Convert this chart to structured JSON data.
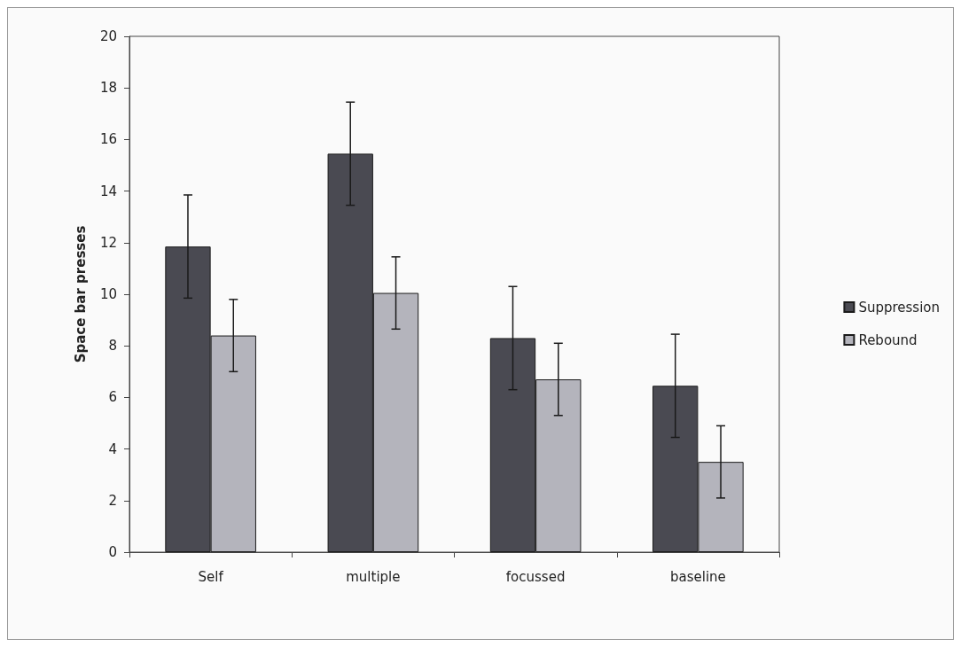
{
  "chart_data": {
    "type": "bar",
    "ylabel": "Space bar presses",
    "categories": [
      "Self",
      "multiple",
      "focussed",
      "baseline"
    ],
    "series": [
      {
        "name": "Suppression",
        "color": "#4a4a52",
        "values": [
          11.85,
          15.45,
          8.3,
          6.45
        ],
        "errors": [
          2,
          2,
          2,
          2
        ]
      },
      {
        "name": "Rebound",
        "color": "#b4b4bc",
        "values": [
          8.4,
          10.05,
          6.7,
          3.5
        ],
        "errors": [
          1.4,
          1.4,
          1.4,
          1.4
        ]
      }
    ],
    "ylim": [
      0,
      20
    ],
    "yticks": [
      0,
      2,
      4,
      6,
      8,
      10,
      12,
      14,
      16,
      18,
      20
    ],
    "grid": false,
    "legend": "right"
  }
}
